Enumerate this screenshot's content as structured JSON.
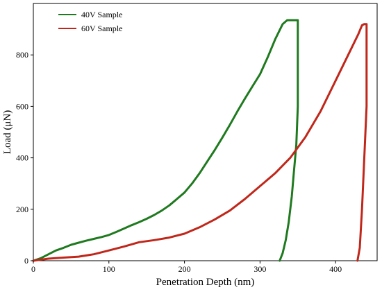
{
  "chart_data": {
    "type": "line",
    "title": "",
    "xlabel": "Penetration Depth (nm)",
    "ylabel": "Load (μN)",
    "xlim": [
      0,
      455
    ],
    "ylim": [
      0,
      1000
    ],
    "xticks": [
      0,
      100,
      200,
      300,
      400
    ],
    "yticks": [
      0,
      200,
      400,
      600,
      800
    ],
    "grid": false,
    "legend_position": "top-left",
    "series": [
      {
        "name": "40V Sample",
        "color": "#1f7a1f",
        "x": [
          0,
          10,
          20,
          30,
          40,
          50,
          60,
          70,
          80,
          90,
          100,
          110,
          120,
          130,
          140,
          150,
          160,
          170,
          180,
          190,
          200,
          210,
          220,
          230,
          240,
          250,
          260,
          270,
          280,
          290,
          300,
          310,
          320,
          330,
          336,
          340,
          344,
          348,
          350,
          350,
          348,
          345,
          342,
          338,
          334,
          330,
          326
        ],
        "y": [
          0,
          10,
          25,
          40,
          50,
          62,
          70,
          78,
          85,
          92,
          100,
          112,
          125,
          138,
          150,
          163,
          178,
          195,
          215,
          240,
          265,
          300,
          340,
          385,
          430,
          478,
          528,
          580,
          630,
          678,
          725,
          790,
          860,
          920,
          935,
          935,
          935,
          935,
          935,
          600,
          450,
          350,
          250,
          150,
          80,
          30,
          0
        ]
      },
      {
        "name": "60V Sample",
        "color": "#c0271a",
        "x": [
          0,
          20,
          40,
          60,
          80,
          100,
          120,
          140,
          160,
          180,
          200,
          220,
          240,
          260,
          280,
          300,
          320,
          340,
          360,
          380,
          400,
          420,
          430,
          435,
          438,
          441,
          441,
          438,
          435,
          432,
          429
        ],
        "y": [
          0,
          8,
          12,
          16,
          25,
          40,
          55,
          72,
          80,
          90,
          105,
          130,
          160,
          195,
          240,
          290,
          340,
          400,
          480,
          580,
          700,
          820,
          880,
          915,
          920,
          920,
          600,
          400,
          200,
          50,
          0
        ]
      }
    ]
  }
}
